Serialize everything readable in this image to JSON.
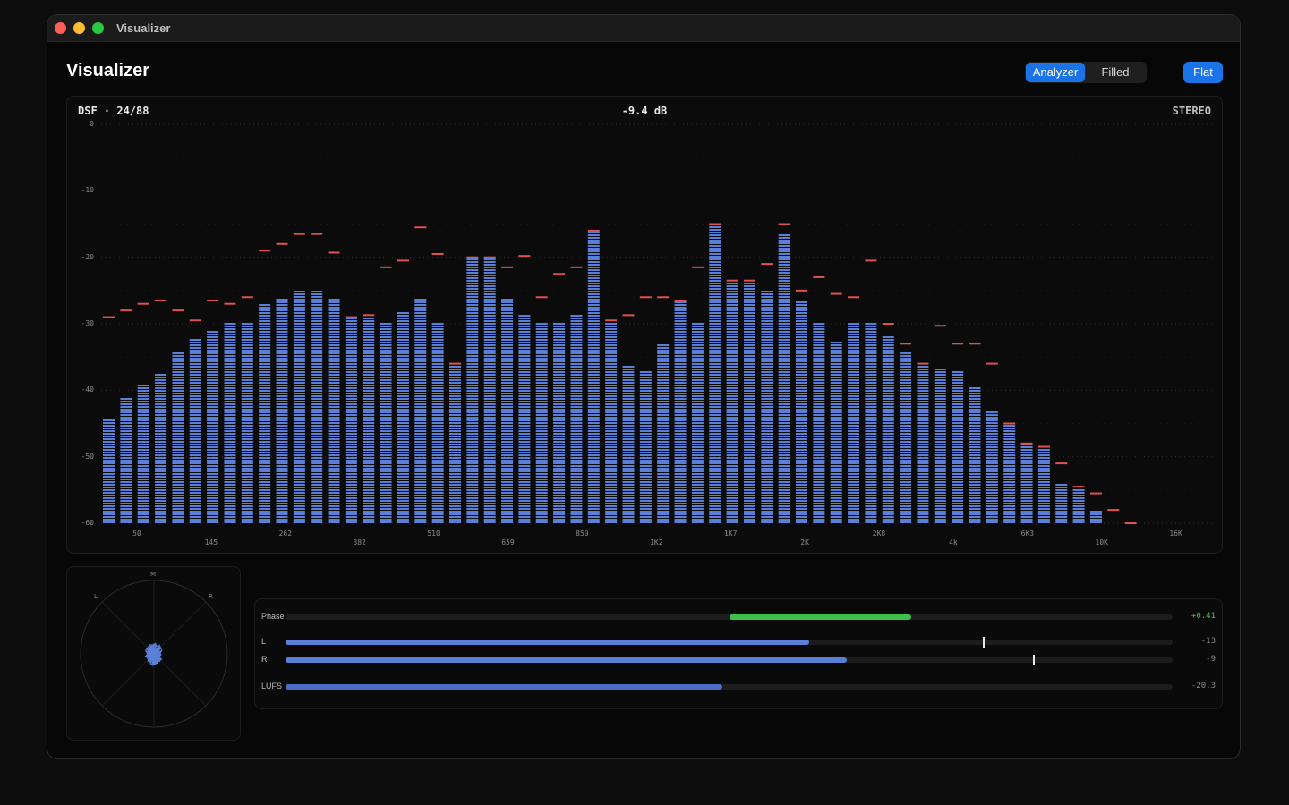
{
  "window": {
    "title": "Visualizer"
  },
  "page": {
    "title": "Visualizer"
  },
  "mode_toggle": {
    "options": [
      "Analyzer",
      "Filled"
    ],
    "selected": "Analyzer"
  },
  "flat_button": {
    "label": "Flat"
  },
  "spectrum": {
    "format_label": "DSF · 24/88",
    "level_label": "-9.4 dB",
    "channel_label": "STEREO"
  },
  "chart_data": {
    "type": "bar",
    "yticks": [
      "0",
      "-10",
      "-20",
      "-30",
      "-40",
      "-50",
      "-60"
    ],
    "ylim": [
      -60,
      0
    ],
    "xticks": [
      "50",
      "145",
      "262",
      "382",
      "510",
      "659",
      "850",
      "1K2",
      "1K7",
      "2K",
      "2K8",
      "4k",
      "6K3",
      "10K",
      "16K"
    ],
    "colors": {
      "bar": "#5a7fd6",
      "peak": "#e05252"
    },
    "series": [
      {
        "values": [
          -44,
          -41,
          -39,
          -37.5,
          -34,
          -32,
          -31,
          -29.5,
          -29.5,
          -27,
          -26,
          -25,
          -25,
          -26,
          -29,
          -29,
          -29.5,
          -28,
          -26,
          -29.5,
          -36,
          -20,
          -20,
          -26,
          -28.5,
          -29.5,
          -29.5,
          -28.5,
          -16,
          -29.5,
          -36,
          -37,
          -33,
          -26.5,
          -29.5,
          -15,
          -23.5,
          -23.5,
          -25,
          -16.5,
          -26.5,
          -29.5,
          -32.5,
          -29.5,
          -29.5,
          -31.5,
          -34,
          -36,
          -36.5,
          -37,
          -39.5,
          -43,
          -45,
          -48,
          -48.5,
          -54,
          -54.5,
          -58,
          -60,
          -60
        ]
      },
      {
        "values": [
          -29,
          -28,
          -27,
          -26.5,
          -28,
          -29.5,
          -26.5,
          -27,
          -26,
          -19,
          -18,
          -16.5,
          -16.5,
          -19.3,
          -29,
          -28.7,
          -21.5,
          -20.5,
          -15.5,
          -19.5,
          -36,
          -20,
          -20,
          -21.5,
          -19.8,
          -26,
          -22.5,
          -21.5,
          -16,
          -29.5,
          -28.7,
          -26,
          -26,
          -26.5,
          -21.5,
          -15,
          -23.5,
          -23.5,
          -21,
          -15,
          -25,
          -23,
          -25.5,
          -26,
          -20.5,
          -30,
          -33,
          -36,
          -30.3,
          -33,
          -33,
          -36,
          -45,
          -48,
          -48.5,
          -51,
          -54.5,
          -55.5,
          -58,
          -60
        ]
      }
    ]
  },
  "scope": {
    "labels": {
      "m": "M",
      "l": "L",
      "r": "R"
    }
  },
  "meters": {
    "phase": {
      "label": "Phase",
      "value": "+0.41",
      "level": 0.41
    },
    "l": {
      "label": "L",
      "value": "-13",
      "level": 0.59,
      "peak": 0.786
    },
    "r": {
      "label": "R",
      "value": "-9",
      "level": 0.633,
      "peak": 0.843
    },
    "lufs": {
      "label": "LUFS",
      "value": "-20.3",
      "level": 0.492
    }
  }
}
